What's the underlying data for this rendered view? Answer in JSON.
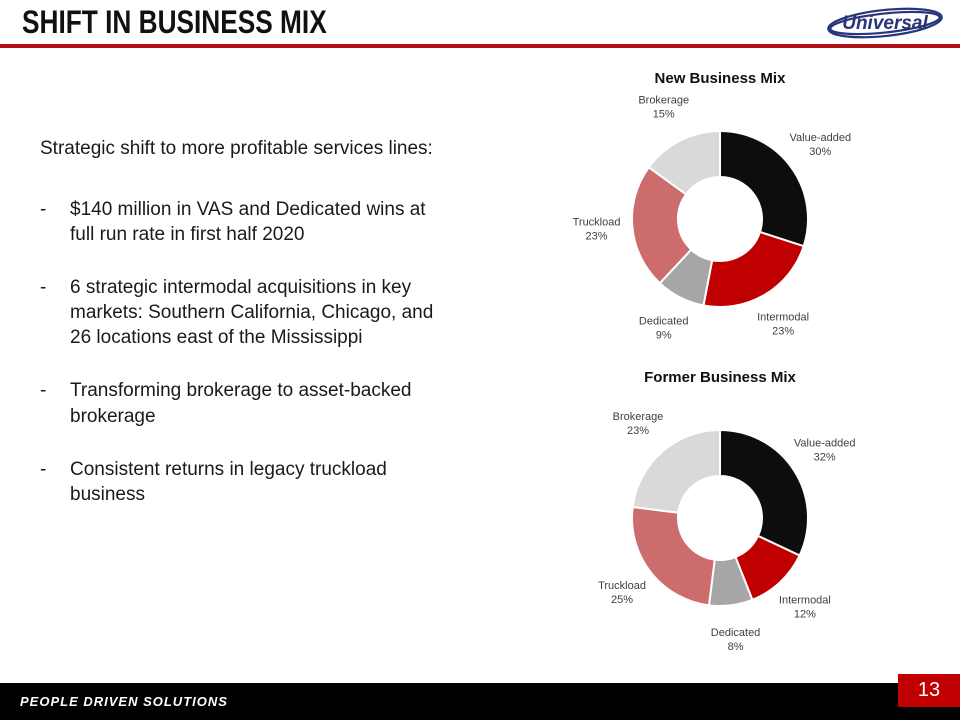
{
  "header": {
    "title": "SHIFT IN BUSINESS MIX",
    "logo": "Universal"
  },
  "body": {
    "intro": "Strategic shift to more profitable services lines:",
    "bullets": [
      "$140 million in VAS and Dedicated wins at full run rate in first half 2020",
      "6 strategic intermodal acquisitions in key markets: Southern California, Chicago, and 26 locations east of the Mississippi",
      "Transforming brokerage to asset-backed brokerage",
      "Consistent returns in legacy truckload business"
    ]
  },
  "footer": {
    "tagline": "PEOPLE DRIVEN SOLUTIONS",
    "page_number": "13"
  },
  "colors": {
    "divider_red": "#b01218",
    "page_box_red": "#c00000",
    "footer_bg": "#000000",
    "logo_navy": "#28357a"
  },
  "chart_data": [
    {
      "type": "pie",
      "variant": "donut",
      "title": "New Business Mix",
      "legend_position": "none",
      "slices": [
        {
          "label": "Value-added",
          "value": 30,
          "color": "#0d0d0d"
        },
        {
          "label": "Intermodal",
          "value": 23,
          "color": "#c00000"
        },
        {
          "label": "Dedicated",
          "value": 9,
          "color": "#a6a6a6"
        },
        {
          "label": "Truckload",
          "value": 23,
          "color": "#cc6c6c"
        },
        {
          "label": "Brokerage",
          "value": 15,
          "color": "#d9d9d9"
        }
      ]
    },
    {
      "type": "pie",
      "variant": "donut",
      "title": "Former Business Mix",
      "legend_position": "none",
      "slices": [
        {
          "label": "Value-added",
          "value": 32,
          "color": "#0d0d0d"
        },
        {
          "label": "Intermodal",
          "value": 12,
          "color": "#c00000"
        },
        {
          "label": "Dedicated",
          "value": 8,
          "color": "#a6a6a6"
        },
        {
          "label": "Truckload",
          "value": 25,
          "color": "#cc6c6c"
        },
        {
          "label": "Brokerage",
          "value": 23,
          "color": "#d9d9d9"
        }
      ]
    }
  ]
}
